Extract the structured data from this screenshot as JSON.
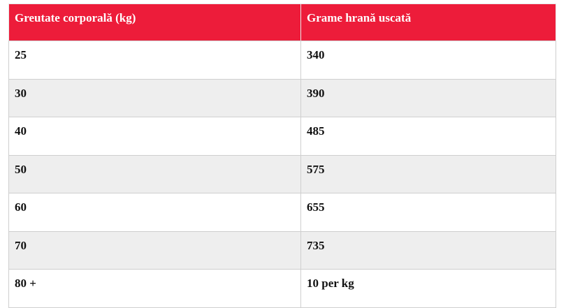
{
  "table": {
    "header": [
      "Greutate corporală (kg)",
      "Grame hrană uscată"
    ],
    "rows": [
      [
        "25",
        "340"
      ],
      [
        "30",
        "390"
      ],
      [
        "40",
        "485"
      ],
      [
        "50",
        "575"
      ],
      [
        "60",
        "655"
      ],
      [
        "70",
        "735"
      ],
      [
        "80 +",
        "10 per kg"
      ]
    ]
  }
}
